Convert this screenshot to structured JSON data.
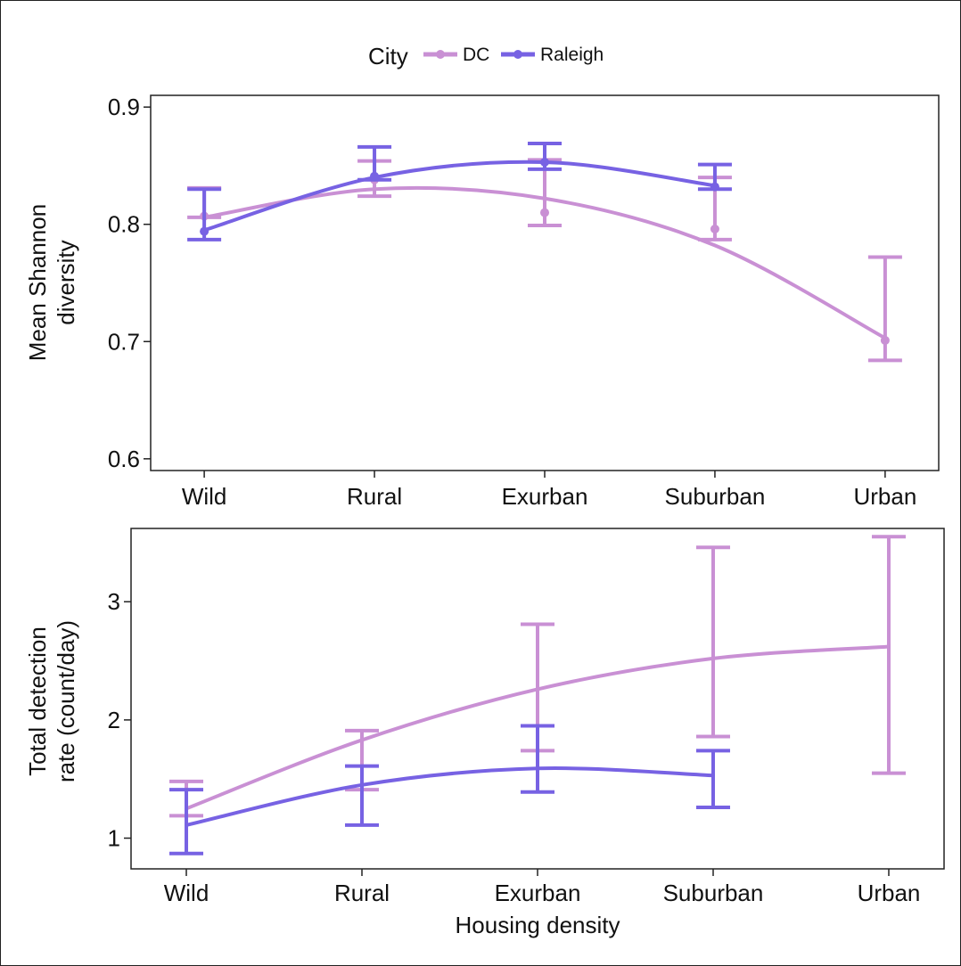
{
  "legend": {
    "title": "City",
    "entries": [
      {
        "label": "DC",
        "color": "#c990d4"
      },
      {
        "label": "Raleigh",
        "color": "#7762e3"
      }
    ],
    "placement": "top-center"
  },
  "chart_data": [
    {
      "type": "line",
      "title": "",
      "xlabel": "",
      "ylabel": "Mean Shannon diversity",
      "ylabel_lines": [
        "Mean Shannon",
        "diversity"
      ],
      "categories": [
        "Wild",
        "Rural",
        "Exurban",
        "Suburban",
        "Urban"
      ],
      "ylim": [
        0.59,
        0.91
      ],
      "yticks": [
        0.6,
        0.7,
        0.8,
        0.9
      ],
      "ytick_labels": [
        "0.6",
        "0.7",
        "0.8",
        "0.9"
      ],
      "grid": false,
      "series": [
        {
          "name": "DC",
          "color": "#c990d4",
          "points": [
            0.807,
            0.838,
            0.81,
            0.796,
            0.701
          ],
          "err_low": [
            0.806,
            0.824,
            0.799,
            0.787,
            0.684
          ],
          "err_high": [
            0.831,
            0.854,
            0.855,
            0.84,
            0.772
          ],
          "fit": [
            0.806,
            0.83,
            0.822,
            0.782,
            0.703
          ]
        },
        {
          "name": "Raleigh",
          "color": "#7762e3",
          "points": [
            0.794,
            0.841,
            0.853,
            0.832
          ],
          "err_low": [
            0.787,
            0.838,
            0.847,
            0.83
          ],
          "err_high": [
            0.83,
            0.866,
            0.869,
            0.851
          ],
          "fit": [
            0.795,
            0.84,
            0.853,
            0.833
          ]
        }
      ]
    },
    {
      "type": "line",
      "title": "",
      "xlabel": "Housing density",
      "ylabel": "Total detection rate (count/day)",
      "ylabel_lines": [
        "Total detection",
        "rate (count/day)"
      ],
      "categories": [
        "Wild",
        "Rural",
        "Exurban",
        "Suburban",
        "Urban"
      ],
      "ylim": [
        0.74,
        3.62
      ],
      "yticks": [
        1,
        2,
        3
      ],
      "ytick_labels": [
        "1",
        "2",
        "3"
      ],
      "grid": false,
      "series": [
        {
          "name": "DC",
          "color": "#c990d4",
          "points": [
            1.25,
            1.8,
            2.26,
            2.53,
            2.62
          ],
          "err_low": [
            1.19,
            1.41,
            1.74,
            1.86,
            1.55
          ],
          "err_high": [
            1.48,
            1.91,
            2.81,
            3.46,
            3.55
          ],
          "fit": [
            1.25,
            1.83,
            2.26,
            2.52,
            2.62
          ]
        },
        {
          "name": "Raleigh",
          "color": "#7762e3",
          "points": [
            1.11,
            1.46,
            1.59,
            1.53
          ],
          "err_low": [
            0.87,
            1.11,
            1.39,
            1.26
          ],
          "err_high": [
            1.41,
            1.61,
            1.95,
            1.74
          ],
          "fit": [
            1.11,
            1.45,
            1.59,
            1.53
          ]
        }
      ]
    }
  ]
}
